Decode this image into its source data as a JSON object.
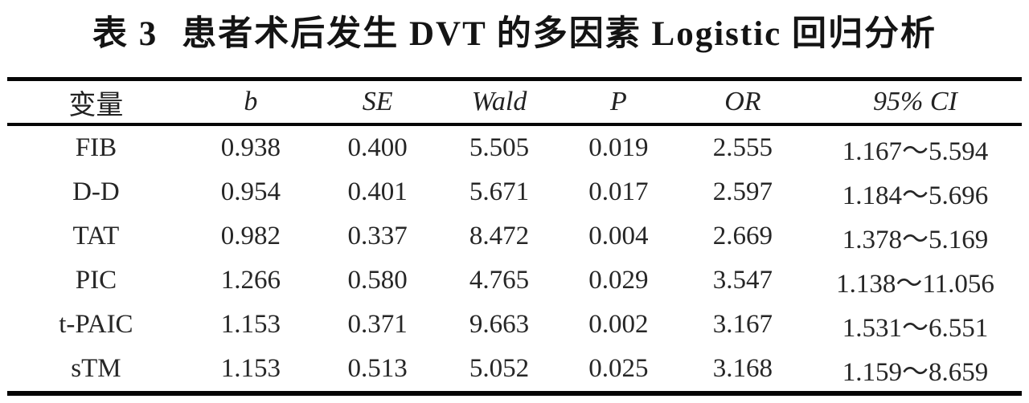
{
  "title": {
    "label": "表 3",
    "text": "患者术后发生 DVT 的多因素 Logistic 回归分析"
  },
  "table": {
    "columns": [
      "变量",
      "b",
      "SE",
      "Wald",
      "P",
      "OR",
      "95% CI"
    ],
    "rows": [
      {
        "variable": "FIB",
        "b": "0.938",
        "se": "0.400",
        "wald": "5.505",
        "p": "0.019",
        "or": "2.555",
        "ci": "1.167～5.594"
      },
      {
        "variable": "D-D",
        "b": "0.954",
        "se": "0.401",
        "wald": "5.671",
        "p": "0.017",
        "or": "2.597",
        "ci": "1.184～5.696"
      },
      {
        "variable": "TAT",
        "b": "0.982",
        "se": "0.337",
        "wald": "8.472",
        "p": "0.004",
        "or": "2.669",
        "ci": "1.378～5.169"
      },
      {
        "variable": "PIC",
        "b": "1.266",
        "se": "0.580",
        "wald": "4.765",
        "p": "0.029",
        "or": "3.547",
        "ci": "1.138～11.056"
      },
      {
        "variable": "t-PAIC",
        "b": "1.153",
        "se": "0.371",
        "wald": "9.663",
        "p": "0.002",
        "or": "3.167",
        "ci": "1.531～6.551"
      },
      {
        "variable": "sTM",
        "b": "1.153",
        "se": "0.513",
        "wald": "5.052",
        "p": "0.025",
        "or": "3.168",
        "ci": "1.159～8.659"
      }
    ]
  },
  "colors": {
    "background": "#ffffff",
    "text": "#262626",
    "rule": "#050505"
  }
}
